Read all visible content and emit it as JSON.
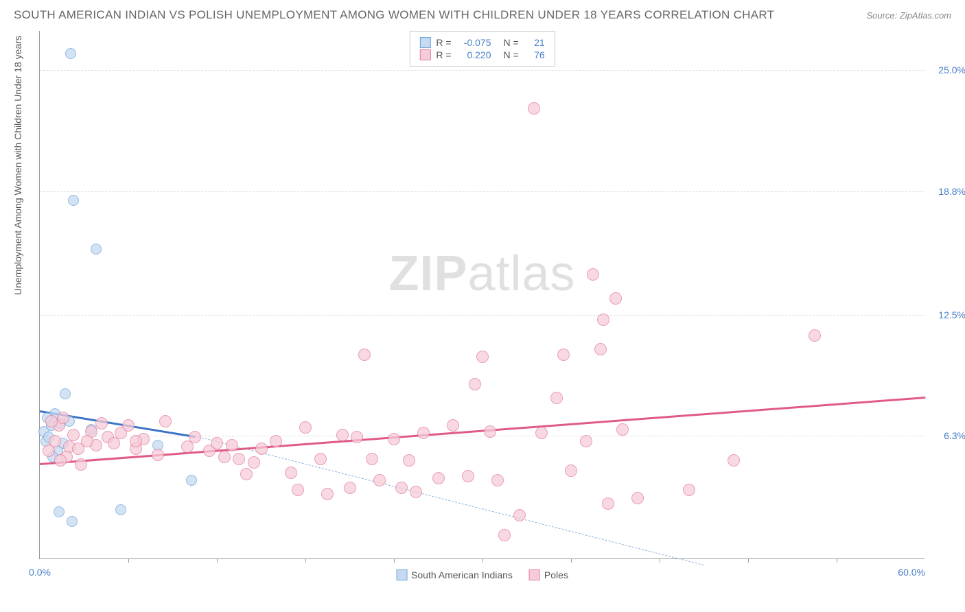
{
  "title": "SOUTH AMERICAN INDIAN VS POLISH UNEMPLOYMENT AMONG WOMEN WITH CHILDREN UNDER 18 YEARS CORRELATION CHART",
  "source": "Source: ZipAtlas.com",
  "watermark_bold": "ZIP",
  "watermark_light": "atlas",
  "ylabel": "Unemployment Among Women with Children Under 18 years",
  "chart": {
    "type": "scatter",
    "xlim": [
      0,
      60
    ],
    "ylim": [
      0,
      27
    ],
    "x_ticks": [
      6,
      12,
      18,
      24,
      30,
      36,
      42,
      48,
      54
    ],
    "x_tick_labels_visible": {
      "0": "0.0%",
      "60": "60.0%"
    },
    "y_grid": [
      6.3,
      12.5,
      18.8,
      25.0
    ],
    "y_tick_labels": [
      "6.3%",
      "12.5%",
      "18.8%",
      "25.0%"
    ],
    "background_color": "#ffffff",
    "grid_color": "#dddddd",
    "axis_color": "#999999",
    "tick_label_color": "#4a7fc9"
  },
  "series": [
    {
      "name": "South American Indians",
      "fill": "#c5daf1",
      "stroke": "#6fa3dd",
      "line_color": "#3d74c6",
      "dash_color": "#8bb0db",
      "marker_radius": 8,
      "R_label": "R =",
      "R": "-0.075",
      "N_label": "N =",
      "N": "21",
      "trend_solid": {
        "x1": 0,
        "y1": 7.6,
        "x2": 10.5,
        "y2": 6.3
      },
      "trend_dashed": {
        "x1": 10.5,
        "y1": 6.3,
        "x2": 45,
        "y2": -0.3
      },
      "points": [
        [
          0.3,
          6.5
        ],
        [
          0.4,
          6.0
        ],
        [
          0.6,
          6.2
        ],
        [
          0.8,
          6.8
        ],
        [
          1.0,
          7.4
        ],
        [
          1.2,
          5.5
        ],
        [
          1.4,
          6.9
        ],
        [
          1.7,
          8.4
        ],
        [
          2.1,
          25.8
        ],
        [
          2.3,
          18.3
        ],
        [
          3.5,
          6.6
        ],
        [
          3.8,
          15.8
        ],
        [
          1.3,
          2.4
        ],
        [
          2.2,
          1.9
        ],
        [
          5.5,
          2.5
        ],
        [
          1.6,
          5.9
        ],
        [
          2.0,
          7.0
        ],
        [
          8.0,
          5.8
        ],
        [
          0.9,
          5.2
        ],
        [
          10.3,
          4.0
        ],
        [
          0.5,
          7.2
        ]
      ]
    },
    {
      "name": "Poles",
      "fill": "#f6ccd8",
      "stroke": "#e47d9f",
      "line_color": "#e05a86",
      "marker_radius": 9,
      "R_label": "R =",
      "R": "0.220",
      "N_label": "N =",
      "N": "76",
      "trend_solid": {
        "x1": 0,
        "y1": 4.9,
        "x2": 60,
        "y2": 8.3
      },
      "points": [
        [
          0.6,
          5.5
        ],
        [
          1.0,
          6.0
        ],
        [
          1.3,
          6.8
        ],
        [
          1.6,
          7.2
        ],
        [
          2.0,
          5.7
        ],
        [
          2.3,
          6.3
        ],
        [
          2.6,
          5.6
        ],
        [
          3.5,
          6.5
        ],
        [
          3.8,
          5.8
        ],
        [
          4.2,
          6.9
        ],
        [
          4.6,
          6.2
        ],
        [
          5.0,
          5.9
        ],
        [
          5.5,
          6.4
        ],
        [
          6.0,
          6.8
        ],
        [
          6.5,
          5.6
        ],
        [
          7.0,
          6.1
        ],
        [
          8.0,
          5.3
        ],
        [
          8.5,
          7.0
        ],
        [
          10.0,
          5.7
        ],
        [
          10.5,
          6.2
        ],
        [
          11.5,
          5.5
        ],
        [
          12.0,
          5.9
        ],
        [
          12.5,
          5.2
        ],
        [
          13.0,
          5.8
        ],
        [
          13.5,
          5.1
        ],
        [
          14.0,
          4.3
        ],
        [
          14.5,
          4.9
        ],
        [
          15.0,
          5.6
        ],
        [
          16.0,
          6.0
        ],
        [
          17.0,
          4.4
        ],
        [
          17.5,
          3.5
        ],
        [
          18.0,
          6.7
        ],
        [
          19.0,
          5.1
        ],
        [
          19.5,
          3.3
        ],
        [
          20.5,
          6.3
        ],
        [
          21.0,
          3.6
        ],
        [
          21.5,
          6.2
        ],
        [
          22.0,
          10.4
        ],
        [
          22.5,
          5.1
        ],
        [
          23.0,
          4.0
        ],
        [
          24.0,
          6.1
        ],
        [
          24.5,
          3.6
        ],
        [
          25.0,
          5.0
        ],
        [
          25.5,
          3.4
        ],
        [
          26.0,
          6.4
        ],
        [
          27.0,
          4.1
        ],
        [
          28.0,
          6.8
        ],
        [
          29.0,
          4.2
        ],
        [
          29.5,
          8.9
        ],
        [
          30.0,
          10.3
        ],
        [
          30.5,
          6.5
        ],
        [
          31.0,
          4.0
        ],
        [
          31.5,
          1.2
        ],
        [
          32.5,
          2.2
        ],
        [
          33.5,
          23.0
        ],
        [
          34.0,
          6.4
        ],
        [
          35.0,
          8.2
        ],
        [
          35.5,
          10.4
        ],
        [
          36.0,
          4.5
        ],
        [
          37.0,
          6.0
        ],
        [
          37.5,
          14.5
        ],
        [
          38.0,
          10.7
        ],
        [
          38.5,
          2.8
        ],
        [
          39.0,
          13.3
        ],
        [
          40.5,
          3.1
        ],
        [
          39.5,
          6.6
        ],
        [
          38.2,
          12.2
        ],
        [
          44.0,
          3.5
        ],
        [
          47.0,
          5.0
        ],
        [
          52.5,
          11.4
        ],
        [
          6.5,
          6.0
        ],
        [
          1.8,
          5.2
        ],
        [
          2.8,
          4.8
        ],
        [
          3.2,
          6.0
        ],
        [
          0.8,
          7.0
        ],
        [
          1.4,
          5.0
        ]
      ]
    }
  ],
  "legend_bottom": [
    {
      "label": "South American Indians",
      "fill": "#c5daf1",
      "stroke": "#6fa3dd"
    },
    {
      "label": "Poles",
      "fill": "#f6ccd8",
      "stroke": "#e47d9f"
    }
  ]
}
